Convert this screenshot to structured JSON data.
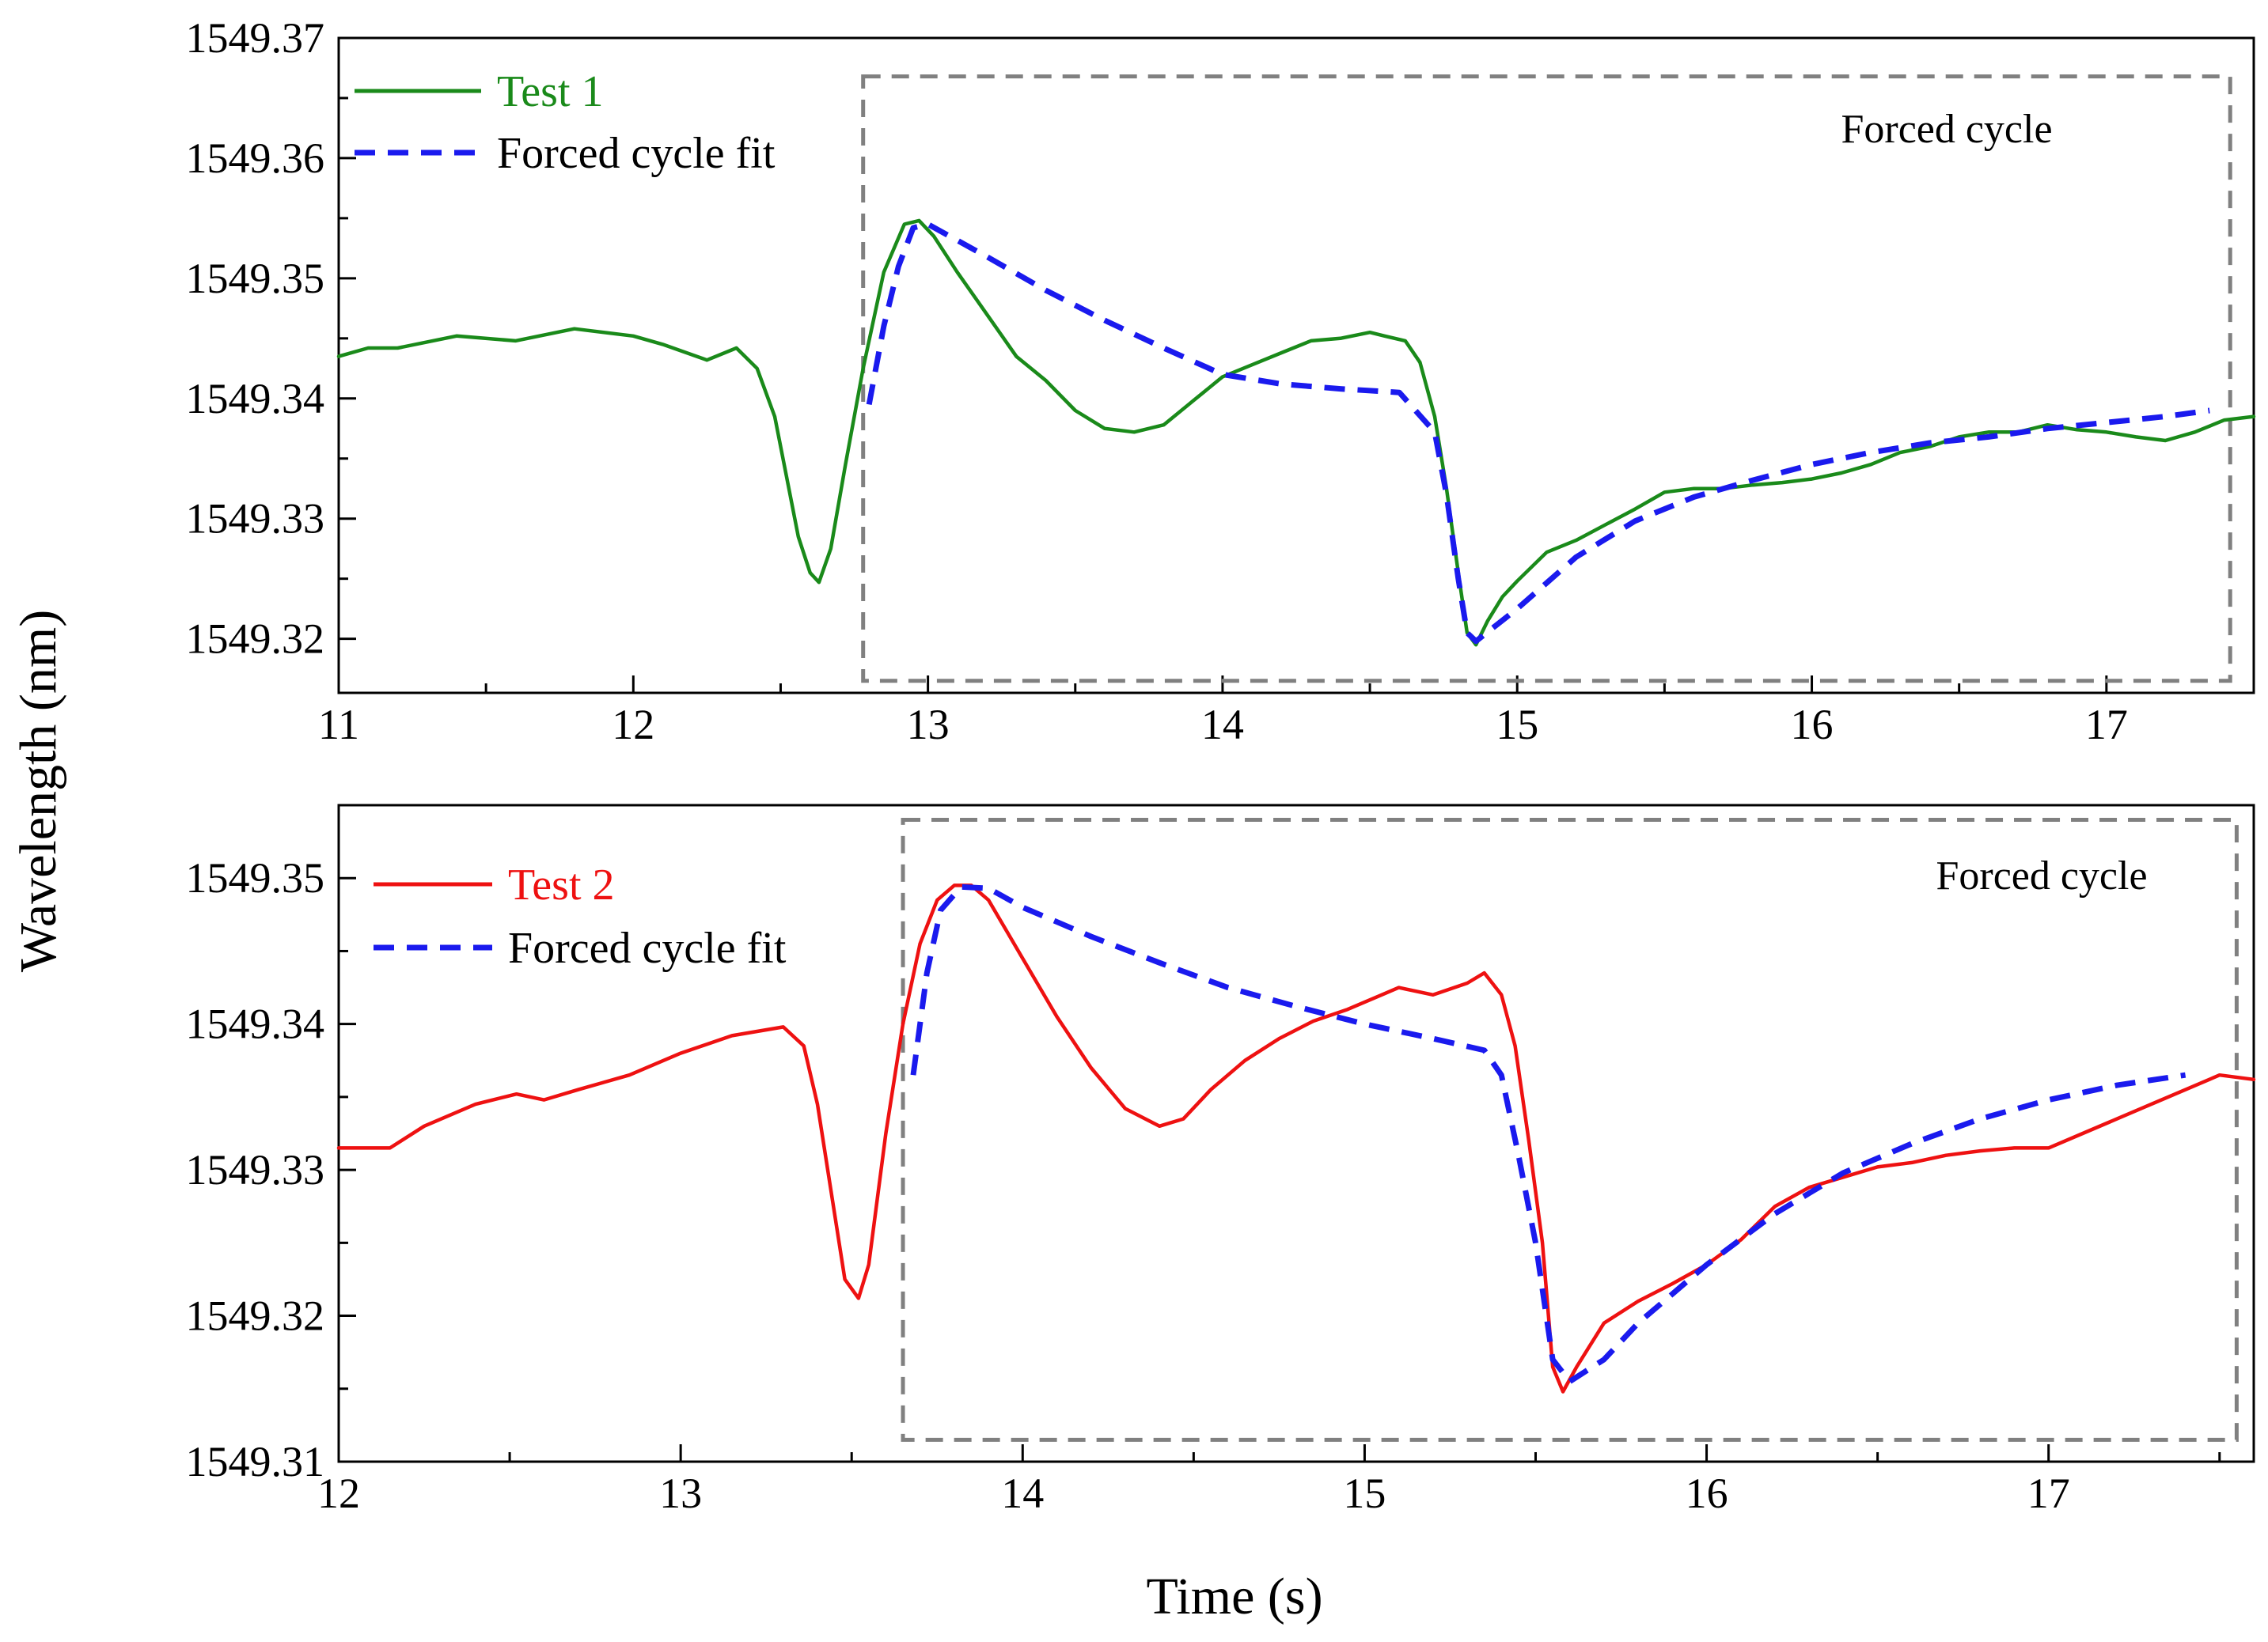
{
  "chart_data": [
    {
      "type": "line",
      "panel": "top",
      "xlim": [
        11,
        17.5
      ],
      "ylim": [
        1549.3155,
        1549.37
      ],
      "xticks": [
        11,
        12,
        13,
        14,
        15,
        16,
        17
      ],
      "yticks": [
        1549.32,
        1549.33,
        1549.34,
        1549.35,
        1549.36,
        1549.37
      ],
      "xtick_labels": [
        "11",
        "12",
        "13",
        "14",
        "15",
        "16",
        "17"
      ],
      "ytick_labels": [
        "1549.32",
        "1549.33",
        "1549.34",
        "1549.35",
        "1549.36",
        "1549.37"
      ],
      "legend": {
        "position": "top-left"
      },
      "series": [
        {
          "name": "Test 1",
          "style": "solid",
          "color": "#1a8a1a",
          "x": [
            11.0,
            11.1,
            11.2,
            11.4,
            11.6,
            11.8,
            12.0,
            12.1,
            12.25,
            12.35,
            12.42,
            12.48,
            12.52,
            12.56,
            12.6,
            12.63,
            12.67,
            12.72,
            12.78,
            12.85,
            12.92,
            12.97,
            13.02,
            13.1,
            13.2,
            13.3,
            13.4,
            13.5,
            13.6,
            13.7,
            13.8,
            13.9,
            14.0,
            14.1,
            14.2,
            14.3,
            14.4,
            14.5,
            14.55,
            14.62,
            14.67,
            14.72,
            14.76,
            14.8,
            14.83,
            14.86,
            14.9,
            14.95,
            15.0,
            15.1,
            15.2,
            15.3,
            15.4,
            15.5,
            15.6,
            15.7,
            15.8,
            15.9,
            16.0,
            16.1,
            16.2,
            16.3,
            16.4,
            16.5,
            16.6,
            16.7,
            16.8,
            16.9,
            17.0,
            17.1,
            17.2,
            17.3,
            17.4,
            17.5
          ],
          "y": [
            1549.3435,
            1549.3442,
            1549.3442,
            1549.3452,
            1549.3448,
            1549.3458,
            1549.3452,
            1549.3445,
            1549.3432,
            1549.3442,
            1549.3425,
            1549.3385,
            1549.3335,
            1549.3285,
            1549.3255,
            1549.3247,
            1549.3275,
            1549.3345,
            1549.3425,
            1549.3505,
            1549.3545,
            1549.3548,
            1549.3535,
            1549.3505,
            1549.347,
            1549.3435,
            1549.3415,
            1549.339,
            1549.3375,
            1549.3372,
            1549.3378,
            1549.3398,
            1549.3418,
            1549.3428,
            1549.3438,
            1549.3448,
            1549.345,
            1549.3455,
            1549.3452,
            1549.3448,
            1549.343,
            1549.3385,
            1549.3325,
            1549.3255,
            1549.3205,
            1549.3195,
            1549.3215,
            1549.3235,
            1549.3248,
            1549.3272,
            1549.3282,
            1549.3295,
            1549.3308,
            1549.3322,
            1549.3325,
            1549.3325,
            1549.3328,
            1549.333,
            1549.3333,
            1549.3338,
            1549.3345,
            1549.3355,
            1549.336,
            1549.3368,
            1549.3372,
            1549.3372,
            1549.3378,
            1549.3374,
            1549.3372,
            1549.3368,
            1549.3365,
            1549.3372,
            1549.3382,
            1549.3385
          ]
        },
        {
          "name": "Forced cycle fit",
          "style": "dashed",
          "color": "#1a1aee",
          "x": [
            12.8,
            12.85,
            12.9,
            12.95,
            13.0,
            13.2,
            13.4,
            13.6,
            13.8,
            14.0,
            14.2,
            14.4,
            14.6,
            14.72,
            14.76,
            14.8,
            14.83,
            14.86,
            15.0,
            15.2,
            15.4,
            15.6,
            15.8,
            16.0,
            16.2,
            16.4,
            16.6,
            16.8,
            17.0,
            17.2,
            17.35
          ],
          "y": [
            1549.3395,
            1549.346,
            1549.351,
            1549.3542,
            1549.3545,
            1549.3518,
            1549.349,
            1549.3465,
            1549.3442,
            1549.342,
            1549.3412,
            1549.3408,
            1549.3405,
            1549.3372,
            1549.332,
            1549.325,
            1549.3205,
            1549.3198,
            1549.3225,
            1549.3268,
            1549.3298,
            1549.3318,
            1549.3332,
            1549.3345,
            1549.3355,
            1549.3363,
            1549.3368,
            1549.3375,
            1549.338,
            1549.3385,
            1549.339
          ]
        }
      ],
      "annotations": [
        {
          "text": "Forced cycle",
          "shape": "dashed-box",
          "x_range": [
            12.78,
            17.42
          ],
          "y_range": [
            1549.3165,
            1549.3668
          ]
        }
      ]
    },
    {
      "type": "line",
      "panel": "bottom",
      "xlim": [
        12,
        17.6
      ],
      "ylim": [
        1549.31,
        1549.355
      ],
      "xticks": [
        12,
        13,
        14,
        15,
        16,
        17
      ],
      "yticks": [
        1549.31,
        1549.32,
        1549.33,
        1549.34,
        1549.35
      ],
      "xtick_labels": [
        "12",
        "13",
        "14",
        "15",
        "16",
        "17"
      ],
      "ytick_labels": [
        "1549.31",
        "1549.32",
        "1549.33",
        "1549.34",
        "1549.35"
      ],
      "legend": {
        "position": "top-left"
      },
      "series": [
        {
          "name": "Test 2",
          "style": "solid",
          "color": "#ee1111",
          "x": [
            12.0,
            12.15,
            12.25,
            12.4,
            12.52,
            12.6,
            12.7,
            12.85,
            13.0,
            13.15,
            13.3,
            13.36,
            13.4,
            13.44,
            13.48,
            13.52,
            13.55,
            13.6,
            13.65,
            13.7,
            13.75,
            13.8,
            13.85,
            13.9,
            14.0,
            14.1,
            14.2,
            14.3,
            14.4,
            14.47,
            14.55,
            14.65,
            14.75,
            14.85,
            14.95,
            15.05,
            15.1,
            15.2,
            15.3,
            15.35,
            15.4,
            15.44,
            15.48,
            15.52,
            15.55,
            15.58,
            15.62,
            15.7,
            15.8,
            15.9,
            16.0,
            16.1,
            16.2,
            16.3,
            16.4,
            16.5,
            16.6,
            16.7,
            16.8,
            16.9,
            17.0,
            17.1,
            17.2,
            17.3,
            17.4,
            17.5,
            17.6
          ],
          "y": [
            1549.3315,
            1549.3315,
            1549.333,
            1549.3345,
            1549.3352,
            1549.3348,
            1549.3355,
            1549.3365,
            1549.338,
            1549.3392,
            1549.3398,
            1549.3385,
            1549.3345,
            1549.3285,
            1549.3225,
            1549.3212,
            1549.3235,
            1549.3325,
            1549.34,
            1549.3455,
            1549.3485,
            1549.3495,
            1549.3495,
            1549.3485,
            1549.3445,
            1549.3405,
            1549.337,
            1549.3342,
            1549.333,
            1549.3335,
            1549.3355,
            1549.3375,
            1549.339,
            1549.3402,
            1549.341,
            1549.342,
            1549.3425,
            1549.342,
            1549.3428,
            1549.3435,
            1549.342,
            1549.3385,
            1549.332,
            1549.325,
            1549.3165,
            1549.3148,
            1549.3165,
            1549.3195,
            1549.321,
            1549.3222,
            1549.3235,
            1549.3252,
            1549.3275,
            1549.3288,
            1549.3295,
            1549.3302,
            1549.3305,
            1549.331,
            1549.3313,
            1549.3315,
            1549.3315,
            1549.3325,
            1549.3335,
            1549.3345,
            1549.3355,
            1549.3365,
            1549.3362
          ]
        },
        {
          "name": "Forced cycle fit",
          "style": "dashed",
          "color": "#1a1aee",
          "x": [
            13.68,
            13.72,
            13.76,
            13.82,
            13.9,
            14.0,
            14.2,
            14.4,
            14.6,
            14.8,
            15.0,
            15.2,
            15.35,
            15.4,
            15.45,
            15.5,
            15.55,
            15.6,
            15.7,
            15.8,
            15.9,
            16.0,
            16.2,
            16.4,
            16.6,
            16.8,
            17.0,
            17.2,
            17.4
          ],
          "y": [
            1549.3365,
            1549.3435,
            1549.3478,
            1549.3494,
            1549.3493,
            1549.348,
            1549.346,
            1549.3442,
            1549.3425,
            1549.3412,
            1549.34,
            1549.339,
            1549.3382,
            1549.3365,
            1549.331,
            1549.325,
            1549.317,
            1549.3155,
            1549.317,
            1549.3195,
            1549.3215,
            1549.3235,
            1549.327,
            1549.3298,
            1549.3318,
            1549.3335,
            1549.3348,
            1549.3358,
            1549.3365
          ]
        }
      ],
      "annotations": [
        {
          "text": "Forced cycle",
          "shape": "dashed-box",
          "x_range": [
            13.65,
            17.55
          ],
          "y_range": [
            1549.3115,
            1549.354
          ]
        }
      ]
    }
  ],
  "labels": {
    "y_axis_title": "Wavelength (nm)",
    "x_axis_title": "Time (s)"
  }
}
